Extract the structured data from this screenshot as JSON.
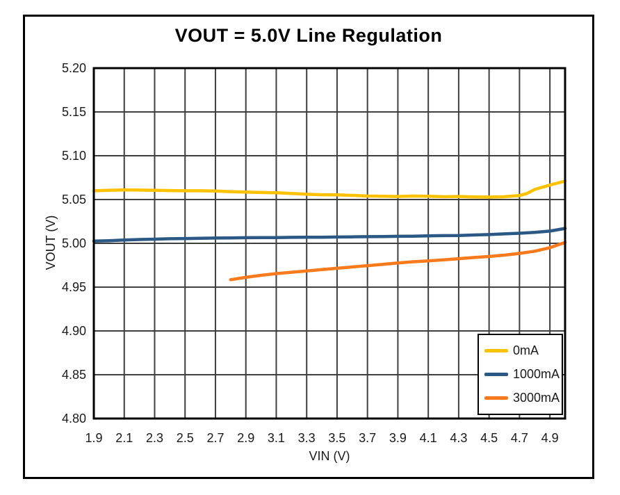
{
  "figure": {
    "title": "VOUT = 5.0V Line Regulation"
  },
  "chart_data": {
    "type": "line",
    "title": "VOUT = 5.0V Line Regulation",
    "xlabel": "VIN (V)",
    "ylabel": "VOUT (V)",
    "xlim": [
      1.9,
      5.0
    ],
    "ylim": [
      4.8,
      5.2
    ],
    "grid": true,
    "grid_color": "#3f3f3f",
    "frame_color": "#000000",
    "legend_position": "inside-bottom-right",
    "x_tick_labels": [
      "1.9",
      "2.1",
      "2.3",
      "2.5",
      "2.7",
      "2.9",
      "3.1",
      "3.3",
      "3.5",
      "3.7",
      "3.9",
      "4.1",
      "4.3",
      "4.5",
      "4.7",
      "4.9"
    ],
    "y_tick_labels": [
      "4.80",
      "4.85",
      "4.90",
      "4.95",
      "5.00",
      "5.05",
      "5.10",
      "5.15",
      "5.20"
    ],
    "series": [
      {
        "name": "0mA",
        "color": "#FFC203",
        "points": [
          [
            1.9,
            5.06
          ],
          [
            2.0,
            5.0605
          ],
          [
            2.1,
            5.061
          ],
          [
            2.2,
            5.0608
          ],
          [
            2.3,
            5.0605
          ],
          [
            2.4,
            5.0602
          ],
          [
            2.5,
            5.06
          ],
          [
            2.6,
            5.06
          ],
          [
            2.7,
            5.0597
          ],
          [
            2.8,
            5.059
          ],
          [
            2.9,
            5.0585
          ],
          [
            3.0,
            5.058
          ],
          [
            3.1,
            5.0578
          ],
          [
            3.2,
            5.057
          ],
          [
            3.3,
            5.056
          ],
          [
            3.4,
            5.0555
          ],
          [
            3.5,
            5.0553
          ],
          [
            3.6,
            5.0548
          ],
          [
            3.7,
            5.054
          ],
          [
            3.8,
            5.0537
          ],
          [
            3.9,
            5.0535
          ],
          [
            4.0,
            5.054
          ],
          [
            4.1,
            5.0537
          ],
          [
            4.2,
            5.0532
          ],
          [
            4.3,
            5.0535
          ],
          [
            4.4,
            5.053
          ],
          [
            4.5,
            5.0528
          ],
          [
            4.6,
            5.0532
          ],
          [
            4.7,
            5.0545
          ],
          [
            4.75,
            5.057
          ],
          [
            4.8,
            5.0615
          ],
          [
            4.9,
            5.0665
          ],
          [
            5.0,
            5.071
          ]
        ]
      },
      {
        "name": "1000mA",
        "color": "#2B5884",
        "points": [
          [
            1.9,
            5.0025
          ],
          [
            2.0,
            5.003
          ],
          [
            2.1,
            5.0038
          ],
          [
            2.2,
            5.0044
          ],
          [
            2.3,
            5.0048
          ],
          [
            2.4,
            5.0052
          ],
          [
            2.5,
            5.0055
          ],
          [
            2.6,
            5.0058
          ],
          [
            2.7,
            5.006
          ],
          [
            2.8,
            5.0062
          ],
          [
            2.9,
            5.0064
          ],
          [
            3.0,
            5.0065
          ],
          [
            3.1,
            5.0066
          ],
          [
            3.2,
            5.0068
          ],
          [
            3.3,
            5.007
          ],
          [
            3.4,
            5.007
          ],
          [
            3.5,
            5.0072
          ],
          [
            3.6,
            5.0074
          ],
          [
            3.7,
            5.0076
          ],
          [
            3.8,
            5.0078
          ],
          [
            3.9,
            5.008
          ],
          [
            4.0,
            5.0082
          ],
          [
            4.1,
            5.0085
          ],
          [
            4.2,
            5.0088
          ],
          [
            4.3,
            5.009
          ],
          [
            4.4,
            5.0095
          ],
          [
            4.5,
            5.01
          ],
          [
            4.6,
            5.0108
          ],
          [
            4.7,
            5.0115
          ],
          [
            4.8,
            5.0125
          ],
          [
            4.9,
            5.014
          ],
          [
            5.0,
            5.017
          ]
        ]
      },
      {
        "name": "3000mA",
        "color": "#F87A1C",
        "points": [
          [
            2.8,
            4.9585
          ],
          [
            2.9,
            4.9612
          ],
          [
            3.0,
            4.9635
          ],
          [
            3.1,
            4.9655
          ],
          [
            3.2,
            4.967
          ],
          [
            3.3,
            4.9685
          ],
          [
            3.4,
            4.97
          ],
          [
            3.5,
            4.9715
          ],
          [
            3.6,
            4.973
          ],
          [
            3.7,
            4.9745
          ],
          [
            3.8,
            4.976
          ],
          [
            3.9,
            4.9775
          ],
          [
            4.0,
            4.979
          ],
          [
            4.1,
            4.98
          ],
          [
            4.2,
            4.9812
          ],
          [
            4.3,
            4.9825
          ],
          [
            4.4,
            4.9838
          ],
          [
            4.5,
            4.985
          ],
          [
            4.6,
            4.9865
          ],
          [
            4.7,
            4.9885
          ],
          [
            4.8,
            4.991
          ],
          [
            4.9,
            4.995
          ],
          [
            5.0,
            5.001
          ]
        ]
      }
    ]
  }
}
